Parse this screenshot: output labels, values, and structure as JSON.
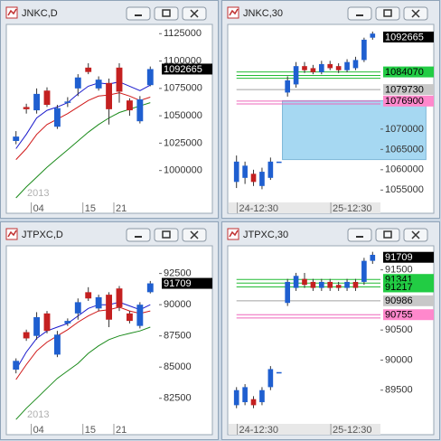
{
  "chart_data": [
    {
      "type": "candlestick",
      "title": "JNKC,D",
      "year_label": "2013",
      "categories": [
        null,
        null,
        "04",
        null,
        null,
        null,
        null,
        "15",
        null,
        null,
        "21",
        null,
        null,
        null
      ],
      "open": [
        1027000,
        1058000,
        1055000,
        1073000,
        1040000,
        1062000,
        1075000,
        1094000,
        1075000,
        1080000,
        1094000,
        1064000,
        1045000,
        1078000
      ],
      "high": [
        1036000,
        1061000,
        1075000,
        1076000,
        1060000,
        1067000,
        1088000,
        1098000,
        1086000,
        1084000,
        1098000,
        1066000,
        1068000,
        1095000
      ],
      "low": [
        1024000,
        1052000,
        1052000,
        1058000,
        1038000,
        1058000,
        1068000,
        1088000,
        1073000,
        1042000,
        1062000,
        1050000,
        1043000,
        1077000
      ],
      "close": [
        1031000,
        1056000,
        1070000,
        1060000,
        1057000,
        1063000,
        1085000,
        1090000,
        1083000,
        1056000,
        1072000,
        1055000,
        1065000,
        1092665
      ],
      "up_color": "#1f5fd0",
      "down_color": "#c42020",
      "lines": [
        {
          "color": "#1a1acc",
          "values": [
            1020000,
            1033000,
            1048000,
            1055000,
            1058000,
            1062000,
            1070000,
            1077000,
            1080000,
            1079000,
            1081000,
            1077000,
            1073000,
            1078000
          ]
        },
        {
          "color": "#d01818",
          "values": [
            1010000,
            1020000,
            1033000,
            1042000,
            1047000,
            1052000,
            1058000,
            1064000,
            1068000,
            1069000,
            1071000,
            1068000,
            1064000,
            1067000
          ]
        },
        {
          "color": "#1a8a1a",
          "values": [
            975000,
            985000,
            994000,
            1003000,
            1011000,
            1019000,
            1027000,
            1035000,
            1042000,
            1048000,
            1053000,
            1056000,
            1059000,
            1062000
          ]
        }
      ],
      "ylim": [
        972500,
        1131000
      ],
      "yticks": [
        1000000,
        1025000,
        1050000,
        1075000,
        1100000,
        1125000
      ],
      "price_tags": [
        {
          "value": 1092665,
          "bg": "#000000",
          "fg": "#ffffff"
        }
      ]
    },
    {
      "type": "candlestick",
      "title": "JNKC,30",
      "categories": [
        null,
        null,
        "24-12:30",
        null,
        null,
        null,
        null,
        null,
        null,
        null,
        null,
        null,
        null,
        "25-12:30",
        null,
        null,
        null
      ],
      "open": [
        1057000,
        1058000,
        1059000,
        1056000,
        1058000,
        1062000,
        1079000,
        1081000,
        1085500,
        1085000,
        1084000,
        1086000,
        1085500,
        1084500,
        1085000,
        1087000,
        1092500
      ],
      "high": [
        1063500,
        1062000,
        1060000,
        1060500,
        1063000,
        1062000,
        1083000,
        1086500,
        1086500,
        1085800,
        1086800,
        1086800,
        1086200,
        1087200,
        1087800,
        1092500,
        1094000
      ],
      "low": [
        1055500,
        1056500,
        1056000,
        1055200,
        1057500,
        1062000,
        1078000,
        1080200,
        1083800,
        1083500,
        1083500,
        1084500,
        1083800,
        1084000,
        1084500,
        1086500,
        1092000
      ],
      "close": [
        1062000,
        1061000,
        1057000,
        1059500,
        1062000,
        1062000,
        1082000,
        1085500,
        1084500,
        1084000,
        1086000,
        1085000,
        1084500,
        1086500,
        1087000,
        1092000,
        1093500
      ],
      "up_color": "#1f5fd0",
      "down_color": "#c42020",
      "zone": {
        "from": 1062500,
        "to": 1077000,
        "color": "#a6d8f2"
      },
      "hlines": [
        {
          "value": 1084070,
          "color": "#22bb33"
        },
        {
          "value": 1083200,
          "color": "#22bb33"
        },
        {
          "value": 1082500,
          "color": "#22bb33"
        },
        {
          "value": 1079730,
          "color": "#a0a0a0"
        },
        {
          "value": 1076900,
          "color": "#ee66bb"
        },
        {
          "value": 1076200,
          "color": "#ee66bb"
        }
      ],
      "ylim": [
        1052400,
        1095100
      ],
      "yticks": [
        1055000,
        1060000,
        1065000,
        1070000
      ],
      "price_tags": [
        {
          "value": 1092665,
          "bg": "#000000",
          "fg": "#ffffff"
        },
        {
          "value": 1084070,
          "bg": "#22cc44",
          "fg": "#000000"
        },
        {
          "value": 1079730,
          "bg": "#c8c8c8",
          "fg": "#000000"
        },
        {
          "value": 1076900,
          "bg": "#ff88cc",
          "fg": "#000000"
        }
      ]
    },
    {
      "type": "candlestick",
      "title": "JTPXC,D",
      "year_label": "2013",
      "categories": [
        null,
        null,
        "04",
        null,
        null,
        null,
        null,
        "15",
        null,
        null,
        "21",
        null,
        null,
        null
      ],
      "open": [
        84800,
        87800,
        87500,
        89300,
        86000,
        88500,
        89300,
        91000,
        89700,
        90800,
        91300,
        89300,
        88300,
        91000
      ],
      "high": [
        85700,
        88000,
        89400,
        89500,
        87900,
        88900,
        90500,
        91400,
        90800,
        91000,
        91500,
        89500,
        90200,
        91900
      ],
      "low": [
        84500,
        87100,
        87200,
        87700,
        85800,
        88300,
        88800,
        90300,
        89500,
        88200,
        89500,
        88500,
        88100,
        90900
      ],
      "close": [
        85500,
        87300,
        89000,
        87900,
        87600,
        88700,
        90200,
        90500,
        90600,
        88800,
        89800,
        88700,
        90000,
        91709
      ],
      "up_color": "#1f5fd0",
      "down_color": "#c42020",
      "lines": [
        {
          "color": "#1a1acc",
          "values": [
            84800,
            86200,
            87300,
            87900,
            88200,
            88500,
            89100,
            89700,
            90000,
            90000,
            90200,
            89900,
            89600,
            90000
          ]
        },
        {
          "color": "#d01818",
          "values": [
            84000,
            85200,
            86300,
            87000,
            87500,
            88000,
            88600,
            89100,
            89500,
            89600,
            89800,
            89500,
            89300,
            89500
          ]
        },
        {
          "color": "#1a8a1a",
          "values": [
            80800,
            81700,
            82500,
            83300,
            84100,
            84700,
            85300,
            86100,
            86700,
            87200,
            87500,
            87700,
            87900,
            88200
          ]
        }
      ],
      "ylim": [
        80600,
        94500
      ],
      "yticks": [
        82500,
        85000,
        87500,
        90000,
        92500
      ],
      "price_tags": [
        {
          "value": 91709,
          "bg": "#000000",
          "fg": "#ffffff"
        }
      ]
    },
    {
      "type": "candlestick",
      "title": "JTPXC,30",
      "categories": [
        null,
        null,
        "24-12:30",
        null,
        null,
        null,
        null,
        null,
        null,
        null,
        null,
        null,
        null,
        "25-12:30",
        null,
        null,
        null
      ],
      "open": [
        89250,
        89300,
        89350,
        89300,
        89550,
        89800,
        90950,
        91200,
        91350,
        91300,
        91200,
        91300,
        91250,
        91200,
        91300,
        91300,
        91650
      ],
      "high": [
        89550,
        89600,
        89400,
        89550,
        89900,
        89800,
        91350,
        91450,
        91450,
        91350,
        91350,
        91350,
        91300,
        91350,
        91350,
        91700,
        91800
      ],
      "low": [
        89200,
        89250,
        89200,
        89250,
        89500,
        89800,
        90900,
        91150,
        91200,
        91150,
        91150,
        91150,
        91150,
        91150,
        91150,
        91250,
        91600
      ],
      "close": [
        89500,
        89550,
        89250,
        89500,
        89850,
        89800,
        91300,
        91400,
        91250,
        91200,
        91300,
        91200,
        91200,
        91300,
        91200,
        91650,
        91750
      ],
      "up_color": "#1f5fd0",
      "down_color": "#c42020",
      "hlines": [
        {
          "value": 91341,
          "color": "#22bb33"
        },
        {
          "value": 91280,
          "color": "#22bb33"
        },
        {
          "value": 91217,
          "color": "#22bb33"
        },
        {
          "value": 90986,
          "color": "#a0a0a0"
        },
        {
          "value": 90755,
          "color": "#ee66bb"
        },
        {
          "value": 90700,
          "color": "#ee66bb"
        }
      ],
      "ylim": [
        88970,
        91855
      ],
      "yticks": [
        89500,
        90000,
        90500,
        91500
      ],
      "price_tags": [
        {
          "value": 91709,
          "bg": "#000000",
          "fg": "#ffffff"
        },
        {
          "value": 91341,
          "bg": "#22cc44",
          "fg": "#000000"
        },
        {
          "value": 91217,
          "bg": "#22cc44",
          "fg": "#000000"
        },
        {
          "value": 90986,
          "bg": "#c8c8c8",
          "fg": "#000000"
        },
        {
          "value": 90755,
          "bg": "#ff88cc",
          "fg": "#000000"
        }
      ]
    }
  ]
}
